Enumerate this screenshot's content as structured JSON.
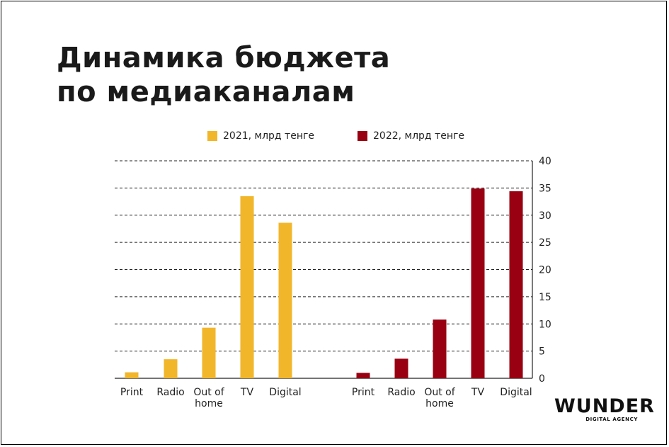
{
  "title_lines": [
    "Динамика бюджета",
    "по медиаканалам"
  ],
  "legend": [
    {
      "label": "2021, млрд тенге",
      "color": "#f2b62a"
    },
    {
      "label": "2022, млрд тенге",
      "color": "#990011"
    }
  ],
  "logo": {
    "main": "WUNDER",
    "sub": "DIGITAL AGENCY"
  },
  "chart_data": {
    "type": "bar",
    "title": "Динамика бюджета по медиаканалам",
    "xlabel": "",
    "ylabel": "",
    "ylim": [
      0,
      40
    ],
    "yticks": [
      0,
      5,
      10,
      15,
      20,
      25,
      30,
      35,
      40
    ],
    "grid": true,
    "legend_position": "top",
    "groups": [
      {
        "series": "2021, млрд тенге",
        "color": "#f2b62a",
        "categories": [
          "Print",
          "Radio",
          "Out of home",
          "TV",
          "Digital"
        ],
        "category_lines": [
          [
            "Print"
          ],
          [
            "Radio"
          ],
          [
            "Out of",
            "home"
          ],
          [
            "TV"
          ],
          [
            "Digital"
          ]
        ],
        "values": [
          1.1,
          3.5,
          9.3,
          33.5,
          28.6
        ]
      },
      {
        "series": "2022, млрд тенге",
        "color": "#990011",
        "categories": [
          "Print",
          "Radio",
          "Out of home",
          "TV",
          "Digital"
        ],
        "category_lines": [
          [
            "Print"
          ],
          [
            "Radio"
          ],
          [
            "Out of",
            "home"
          ],
          [
            "TV"
          ],
          [
            "Digital"
          ]
        ],
        "values": [
          1.0,
          3.6,
          10.8,
          34.9,
          34.4
        ]
      }
    ]
  }
}
